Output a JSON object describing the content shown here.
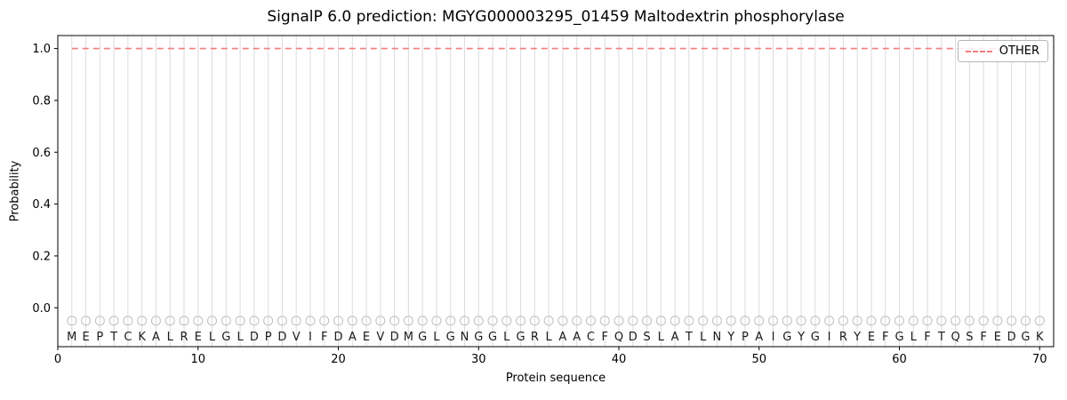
{
  "title": "SignalP 6.0 prediction: MGYG000003295_01459 Maltodextrin phosphorylase",
  "chart_data": {
    "type": "line",
    "title": "SignalP 6.0 prediction: MGYG000003295_01459 Maltodextrin phosphorylase",
    "xlabel": "Protein sequence",
    "ylabel": "Probability",
    "xlim": [
      0,
      71
    ],
    "ylim": [
      -0.15,
      1.05
    ],
    "xticks": [
      0,
      10,
      20,
      30,
      40,
      50,
      60,
      70
    ],
    "yticks": [
      0.0,
      0.2,
      0.4,
      0.6,
      0.8,
      1.0
    ],
    "grid": "vertical gridline at every residue position",
    "residues": "MEPTCKALRELGLDPDVIFDAEVDMGLGNGGLGRLAACFQDSLATLNYPAIGYGIRYEFGLFTQSFEDGK",
    "residue_x_start": 1,
    "marker_y": -0.05,
    "letter_y": -0.112,
    "series": [
      {
        "name": "OTHER",
        "type": "constant-line",
        "y": 1.0,
        "x_start": 1,
        "x_end": 70,
        "color": "#f47c7c",
        "style": "dashed"
      }
    ],
    "legend": {
      "position": "upper right",
      "entries": [
        {
          "label": "OTHER",
          "color": "#f47c7c",
          "style": "dashed"
        }
      ]
    },
    "colors": {
      "grid": "#dcdcdc",
      "marker_stroke": "#c4c4c4",
      "letter": "#1a1a1a",
      "spine": "#000000",
      "tick_label": "#000000"
    }
  }
}
